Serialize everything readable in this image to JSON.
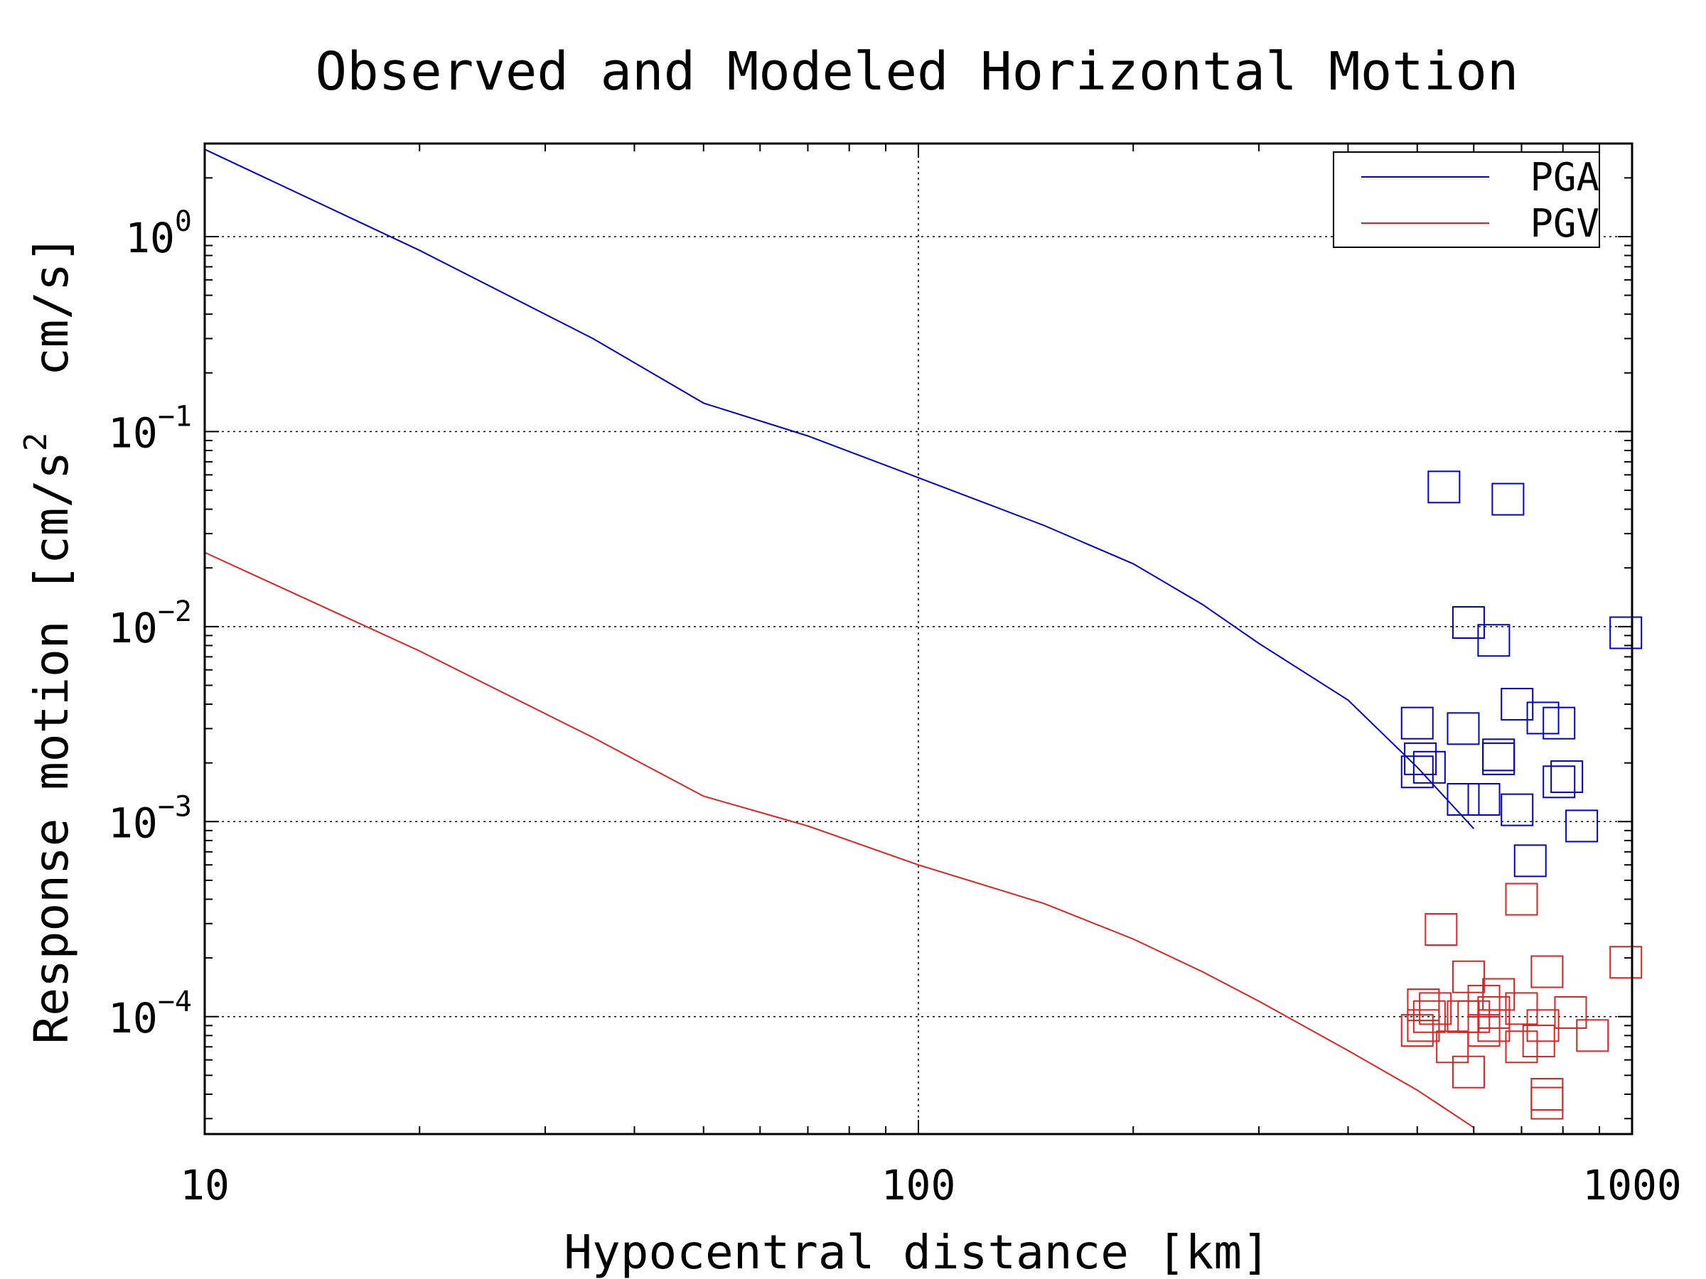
{
  "chart_data": {
    "type": "scatter",
    "title": "Observed and Modeled Horizontal Motion",
    "xlabel": "Hypocentral distance [km]",
    "ylabel": "Response motion [cm/s²  cm/s]",
    "ylabel_parts": {
      "a": "Response motion [cm/s",
      "sup": "2",
      "b": "  cm/s]"
    },
    "x_scale": "log",
    "y_scale": "log",
    "xlim": [
      10,
      1000
    ],
    "ylim": [
      2.5e-05,
      3
    ],
    "x_ticks": [
      {
        "value": 10,
        "label": "10"
      },
      {
        "value": 100,
        "label": "100"
      },
      {
        "value": 1000,
        "label": "1000"
      }
    ],
    "y_ticks": [
      {
        "value": 1,
        "base": "10",
        "exp": "0"
      },
      {
        "value": 0.1,
        "base": "10",
        "exp": "−1"
      },
      {
        "value": 0.01,
        "base": "10",
        "exp": "−2"
      },
      {
        "value": 0.001,
        "base": "10",
        "exp": "−3"
      },
      {
        "value": 0.0001,
        "base": "10",
        "exp": "−4"
      }
    ],
    "grid": true,
    "legend_position": "top-right",
    "series": [
      {
        "name": "PGA",
        "color": "#0000cc",
        "line": {
          "x": [
            10,
            20,
            35,
            50,
            70,
            100,
            150,
            200,
            250,
            300,
            400,
            500,
            600
          ],
          "y": [
            2.8,
            0.85,
            0.3,
            0.14,
            0.095,
            0.058,
            0.033,
            0.021,
            0.013,
            0.0082,
            0.0042,
            0.0019,
            0.00092
          ]
        },
        "points": {
          "x": [
            545,
            670,
            590,
            640,
            690,
            500,
            505,
            580,
            650,
            750,
            790,
            500,
            650,
            520,
            580,
            810,
            690,
            790,
            850,
            720,
            620,
            980
          ],
          "y": [
            0.052,
            0.045,
            0.0105,
            0.0085,
            0.004,
            0.0032,
            0.0021,
            0.003,
            0.0022,
            0.0034,
            0.0032,
            0.0018,
            0.0021,
            0.0019,
            0.0013,
            0.0017,
            0.00115,
            0.0016,
            0.00095,
            0.00063,
            0.0013,
            0.0093
          ]
        }
      },
      {
        "name": "PGV",
        "color": "#dd2222",
        "line": {
          "x": [
            10,
            20,
            35,
            50,
            70,
            100,
            150,
            200,
            250,
            300,
            400,
            500,
            600
          ],
          "y": [
            0.024,
            0.0075,
            0.0027,
            0.00135,
            0.00095,
            0.0006,
            0.00038,
            0.00025,
            0.00017,
            0.00012,
            6.7e-05,
            4.2e-05,
            2.7e-05
          ]
        },
        "points": {
          "x": [
            700,
            540,
            590,
            640,
            760,
            980,
            510,
            530,
            620,
            650,
            700,
            580,
            620,
            820,
            750,
            880,
            510,
            600,
            640,
            740,
            700,
            760,
            760,
            500,
            520,
            560,
            590
          ],
          "y": [
            0.0004,
            0.00028,
            0.00016,
            0.000105,
            0.00017,
            0.00019,
            0.000115,
            0.00011,
            0.00012,
            0.00013,
            0.00011,
            0.0001,
            8.5e-05,
            0.000105,
            9e-05,
            8e-05,
            9e-05,
            0.0001,
            9e-05,
            7.5e-05,
            7e-05,
            4e-05,
            3.6e-05,
            8.5e-05,
            0.0001,
            7e-05,
            5.2e-05
          ]
        }
      }
    ]
  }
}
